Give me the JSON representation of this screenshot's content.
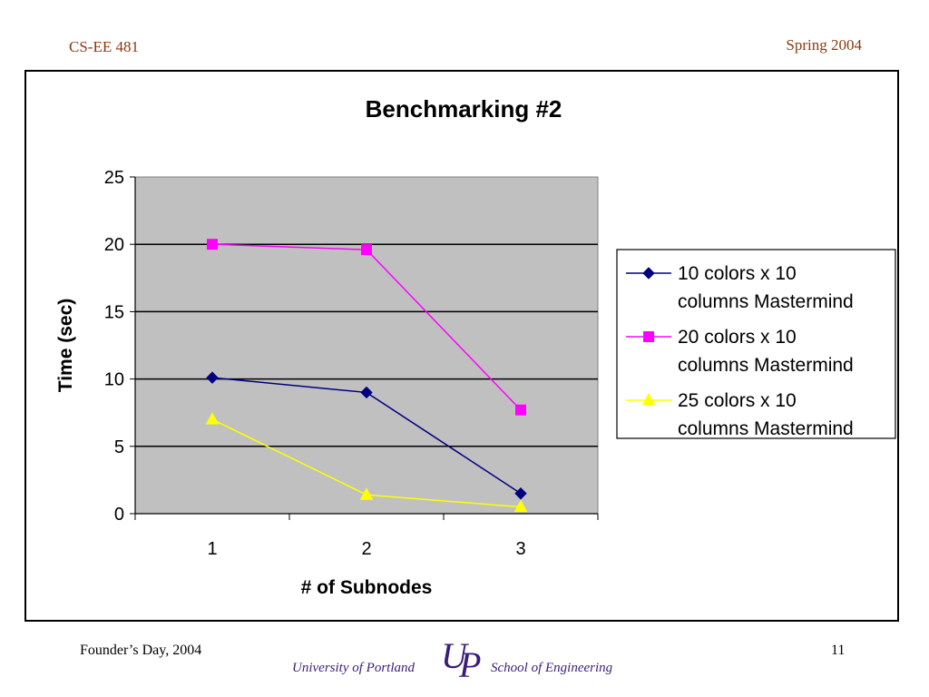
{
  "header": {
    "course": "CS-EE 481",
    "term": "Spring 2004"
  },
  "footer": {
    "left": "Founder’s Day, 2004",
    "page_number": "11",
    "university": "University of Portland",
    "school": "School of Engineering",
    "logo": "UP"
  },
  "chart_data": {
    "type": "line",
    "title": "Benchmarking #2",
    "xlabel": "# of Subnodes",
    "ylabel": "Time (sec)",
    "categories": [
      "1",
      "2",
      "3"
    ],
    "ylim": [
      0,
      25
    ],
    "yticks": [
      0,
      5,
      10,
      15,
      20,
      25
    ],
    "grid": true,
    "legend_position": "right",
    "series": [
      {
        "name": "10 colors x 10 columns Mastermind",
        "legend_lines": [
          "10 colors x 10",
          "columns Mastermind"
        ],
        "values": [
          10.1,
          9.0,
          1.5
        ],
        "color": "#000080",
        "marker": "diamond"
      },
      {
        "name": "20 colors x 10 columns Mastermind",
        "legend_lines": [
          "20 colors x 10",
          "columns Mastermind"
        ],
        "values": [
          20.0,
          19.6,
          7.7
        ],
        "color": "#ff00ff",
        "marker": "square"
      },
      {
        "name": "25 colors x 10 columns Mastermind",
        "legend_lines": [
          "25 colors x 10",
          "columns Mastermind"
        ],
        "values": [
          7.0,
          1.4,
          0.5
        ],
        "color": "#ffff00",
        "marker": "triangle"
      }
    ],
    "plot_background": "#c0c0c0"
  }
}
